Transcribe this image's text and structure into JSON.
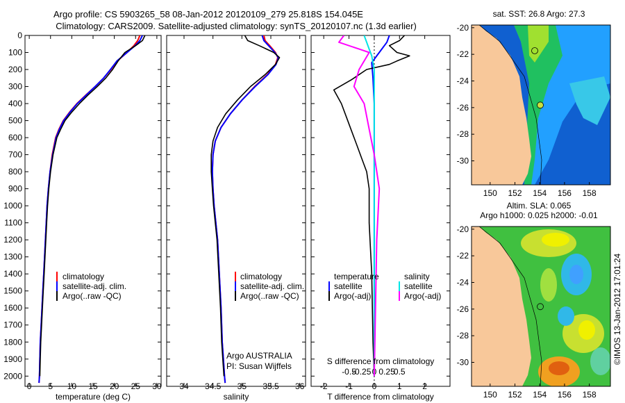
{
  "header": {
    "title_line1": "Argo profile: CS 5903265_58 08-Jan-2012 20120109_279 25.818S 154.045E",
    "title_line2": "Climatology: CARS2009. Satellite-adjusted climatology: synTS_20120107.nc (1.3d earlier)"
  },
  "colors": {
    "climatology": "#ff0000",
    "satellite": "#0000ff",
    "argo": "#000000",
    "salinity_satellite": "#00e5e5",
    "salinity_argo": "#ff00ff",
    "land": "#f8c89a"
  },
  "chart_data": [
    {
      "type": "line",
      "xlabel": "temperature (deg C)",
      "xlim": [
        -1,
        31
      ],
      "ylim": [
        2060,
        0
      ],
      "xticks": [
        "0",
        "5",
        "10",
        "15",
        "20",
        "25",
        "30"
      ],
      "yticks": [
        "0",
        "100",
        "200",
        "300",
        "400",
        "500",
        "600",
        "700",
        "800",
        "900",
        "1000",
        "1100",
        "1200",
        "1300",
        "1400",
        "1500",
        "1600",
        "1700",
        "1800",
        "1900",
        "2000"
      ],
      "legend": [
        "climatology",
        "satellite-adj. clim.",
        "Argo(..raw -QC)"
      ],
      "series": [
        {
          "name": "climatology",
          "color": "#ff0000",
          "x": [
            26.0,
            25.5,
            24.6,
            23.0,
            20.7,
            19.2,
            17.5,
            15.5,
            13.3,
            11.2,
            9.5,
            8.0,
            7.0,
            6.2,
            5.4,
            4.9,
            4.5,
            4.2,
            4.0,
            3.8,
            3.6,
            3.4,
            3.2,
            3.0,
            2.8,
            2.6,
            2.5,
            2.4,
            2.3
          ],
          "depth": [
            0,
            30,
            60,
            100,
            150,
            200,
            250,
            300,
            350,
            400,
            450,
            500,
            550,
            600,
            700,
            800,
            900,
            1000,
            1100,
            1200,
            1300,
            1400,
            1500,
            1600,
            1700,
            1800,
            1900,
            2000,
            2040
          ]
        },
        {
          "name": "satellite-adj. clim.",
          "color": "#0000ff",
          "x": [
            26.6,
            26.0,
            24.9,
            23.0,
            20.6,
            19.1,
            17.5,
            15.5,
            13.4,
            11.3,
            9.6,
            8.1,
            7.1,
            6.3,
            5.5,
            4.9,
            4.5,
            4.2,
            4.0,
            3.8,
            3.6,
            3.4,
            3.2,
            3.0,
            2.8,
            2.6,
            2.5,
            2.4,
            2.3
          ],
          "depth": [
            0,
            30,
            60,
            100,
            150,
            200,
            250,
            300,
            350,
            400,
            450,
            500,
            550,
            600,
            700,
            800,
            900,
            1000,
            1100,
            1200,
            1300,
            1400,
            1500,
            1600,
            1700,
            1800,
            1900,
            2000,
            2040
          ]
        },
        {
          "name": "Argo(..raw -QC)",
          "color": "#000000",
          "x": [
            27.2,
            26.6,
            25.0,
            22.5,
            20.9,
            19.6,
            18.0,
            16.0,
            13.8,
            11.8,
            10.0,
            8.4,
            7.4,
            6.5,
            5.6,
            5.0,
            4.6,
            4.3,
            4.1,
            3.9,
            3.7,
            3.5,
            3.3,
            3.1,
            2.9,
            2.7,
            2.6,
            2.5
          ],
          "depth": [
            0,
            30,
            60,
            100,
            150,
            200,
            250,
            300,
            350,
            400,
            450,
            500,
            550,
            600,
            700,
            800,
            900,
            1000,
            1100,
            1200,
            1300,
            1400,
            1500,
            1600,
            1700,
            1800,
            1900,
            2000
          ]
        }
      ]
    },
    {
      "type": "line",
      "xlabel": "salinity",
      "xlim": [
        33.7,
        36.1
      ],
      "ylim": [
        2060,
        0
      ],
      "xticks": [
        "34",
        "34.5",
        "35",
        "35.5",
        "36"
      ],
      "legend": [
        "climatology",
        "satellite-adj. clim.",
        "Argo(..raw -QC)"
      ],
      "annotations": [
        "Argo AUSTRALIA",
        "PI: Susan Wijffels"
      ],
      "series": [
        {
          "name": "climatology",
          "color": "#ff0000",
          "x": [
            35.38,
            35.4,
            35.48,
            35.58,
            35.62,
            35.58,
            35.44,
            35.22,
            35.0,
            34.8,
            34.64,
            34.54,
            34.5,
            34.49,
            34.5,
            34.52,
            34.55,
            34.58,
            34.61,
            34.64,
            34.66,
            34.68,
            34.7,
            34.71
          ],
          "depth": [
            0,
            30,
            60,
            100,
            130,
            170,
            230,
            300,
            380,
            460,
            540,
            620,
            700,
            800,
            900,
            1000,
            1100,
            1200,
            1400,
            1600,
            1800,
            1900,
            2000,
            2040
          ]
        },
        {
          "name": "satellite-adj. clim.",
          "color": "#0000ff",
          "x": [
            35.35,
            35.38,
            35.46,
            35.57,
            35.63,
            35.59,
            35.45,
            35.23,
            35.0,
            34.8,
            34.64,
            34.54,
            34.5,
            34.49,
            34.5,
            34.52,
            34.55,
            34.58,
            34.61,
            34.64,
            34.66,
            34.68,
            34.7,
            34.71
          ],
          "depth": [
            0,
            30,
            60,
            100,
            130,
            170,
            230,
            300,
            380,
            460,
            540,
            620,
            700,
            800,
            900,
            1000,
            1100,
            1200,
            1400,
            1600,
            1800,
            1900,
            2000,
            2040
          ]
        },
        {
          "name": "Argo(..raw -QC)",
          "color": "#000000",
          "x": [
            35.05,
            35.1,
            35.3,
            35.55,
            35.65,
            35.58,
            35.4,
            35.15,
            34.92,
            34.72,
            34.58,
            34.5,
            34.47,
            34.47,
            34.49,
            34.51,
            34.54,
            34.57,
            34.6,
            34.63,
            34.65,
            34.67,
            34.69
          ],
          "depth": [
            0,
            30,
            60,
            100,
            130,
            170,
            230,
            300,
            380,
            460,
            540,
            620,
            700,
            800,
            900,
            1000,
            1100,
            1200,
            1400,
            1600,
            1800,
            1900,
            2000
          ]
        }
      ]
    },
    {
      "type": "line",
      "xlabel": "T difference from climatology",
      "xlabel_top": "S difference from climatology",
      "xlim": [
        -2.5,
        3.0
      ],
      "ylim": [
        2060,
        0
      ],
      "xticks": [
        "-2",
        "-1",
        "0",
        "1",
        "2"
      ],
      "xticks_top": [
        "-0.5",
        "-0.25",
        "0",
        "0.25",
        "0.5"
      ],
      "legend": [
        "temperature",
        "satellite",
        "Argo(-adj)",
        "salinity",
        "satellite",
        "Argo(-adj)"
      ],
      "series": [
        {
          "name": "temperature satellite",
          "color": "#0000ff",
          "x": [
            0.6,
            0.5,
            0.3,
            0.1,
            -0.1,
            -0.05,
            0.0,
            0.0,
            0.0,
            0.0
          ],
          "depth": [
            0,
            40,
            80,
            120,
            160,
            250,
            400,
            700,
            1000,
            2000
          ]
        },
        {
          "name": "temperature Argo(-adj)",
          "color": "#000000",
          "x": [
            1.2,
            1.0,
            0.6,
            0.9,
            1.4,
            0.9,
            0.6,
            -0.3,
            -0.9,
            -1.6,
            -1.3,
            -1.1,
            -0.9,
            -0.7,
            -0.5,
            -0.3,
            -0.2,
            -0.2,
            -0.1,
            -0.05,
            0.0
          ],
          "depth": [
            0,
            30,
            60,
            100,
            120,
            150,
            170,
            200,
            260,
            320,
            400,
            480,
            560,
            640,
            720,
            800,
            900,
            1100,
            1400,
            1800,
            2000
          ]
        },
        {
          "name": "salinity satellite",
          "color": "#00e5e5",
          "x": [
            -0.2,
            -0.15,
            -0.1,
            -0.05,
            0.0,
            0.0,
            0.0,
            0.0,
            0.0
          ],
          "depth": [
            0,
            40,
            80,
            120,
            200,
            400,
            800,
            1500,
            2000
          ]
        },
        {
          "name": "salinity Argo(-adj)",
          "color": "#ff00ff",
          "x": [
            -0.6,
            -0.7,
            -0.3,
            -0.1,
            -0.2,
            -0.3,
            -0.4,
            -0.2,
            -0.1,
            0.0,
            0.1,
            0.05,
            0.0
          ],
          "depth": [
            0,
            40,
            80,
            100,
            150,
            200,
            300,
            400,
            550,
            700,
            900,
            1200,
            2000
          ]
        }
      ]
    }
  ],
  "map_sst": {
    "title": "sat. SST: 26.8  Argo: 27.3",
    "xticks": [
      "150",
      "152",
      "154",
      "156",
      "158"
    ],
    "yticks": [
      "-20",
      "-22",
      "-24",
      "-26",
      "-28",
      "-30"
    ],
    "lon_range": [
      148.5,
      159.7
    ],
    "lat_range": [
      -31.8,
      -19.8
    ],
    "argo_position": {
      "lon": 154.045,
      "lat": -25.818
    }
  },
  "map_sla": {
    "title_line1": "Altim. SLA: 0.065",
    "title_line2": "Argo h1000: 0.025  h2000: -0.01",
    "xticks": [
      "150",
      "152",
      "154",
      "156",
      "158"
    ],
    "yticks": [
      "-20",
      "-22",
      "-24",
      "-26",
      "-28",
      "-30"
    ],
    "lon_range": [
      148.5,
      159.7
    ],
    "lat_range": [
      -31.8,
      -19.8
    ],
    "argo_position": {
      "lon": 154.045,
      "lat": -25.818
    }
  },
  "credit": "©IMOS 13-Jan-2012 17:01:24"
}
